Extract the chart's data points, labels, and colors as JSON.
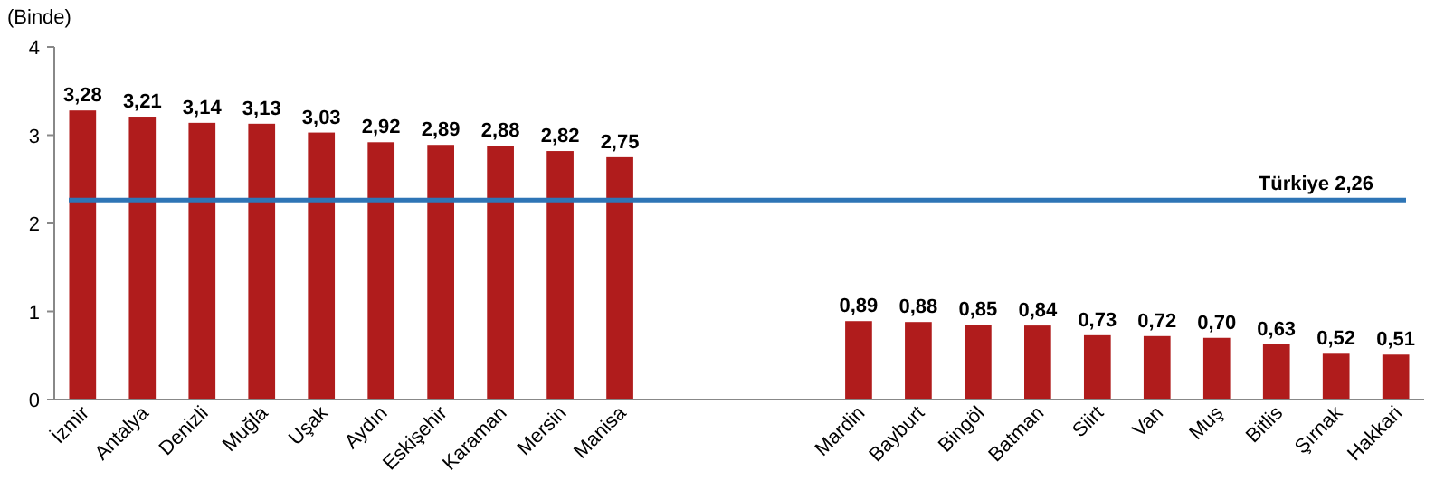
{
  "chart_data": {
    "type": "bar",
    "ylabel": "(Binde)",
    "categories": [
      "İzmir",
      "Antalya",
      "Denizli",
      "Muğla",
      "Uşak",
      "Aydın",
      "Eskişehir",
      "Karaman",
      "Mersin",
      "Manisa",
      null,
      null,
      null,
      "Mardin",
      "Bayburt",
      "Bingöl",
      "Batman",
      "Siirt",
      "Van",
      "Muş",
      "Bitlis",
      "Şırnak",
      "Hakkari"
    ],
    "values": [
      3.28,
      3.21,
      3.14,
      3.13,
      3.03,
      2.92,
      2.89,
      2.88,
      2.82,
      2.75,
      null,
      null,
      null,
      0.89,
      0.88,
      0.85,
      0.84,
      0.73,
      0.72,
      0.7,
      0.63,
      0.52,
      0.51
    ],
    "value_labels": [
      "3,28",
      "3,21",
      "3,14",
      "3,13",
      "3,03",
      "2,92",
      "2,89",
      "2,88",
      "2,82",
      "2,75",
      null,
      null,
      null,
      "0,89",
      "0,88",
      "0,85",
      "0,84",
      "0,73",
      "0,72",
      "0,70",
      "0,63",
      "0,52",
      "0,51"
    ],
    "color": "#b01c1c",
    "ylim": [
      0,
      4
    ],
    "yticks": [
      0,
      1,
      2,
      3,
      4
    ],
    "grid": false,
    "ref_lines": [
      {
        "axis": "y",
        "value": 2.26,
        "label": "Türkiye  2,26",
        "color": "#2e75b6"
      }
    ]
  }
}
